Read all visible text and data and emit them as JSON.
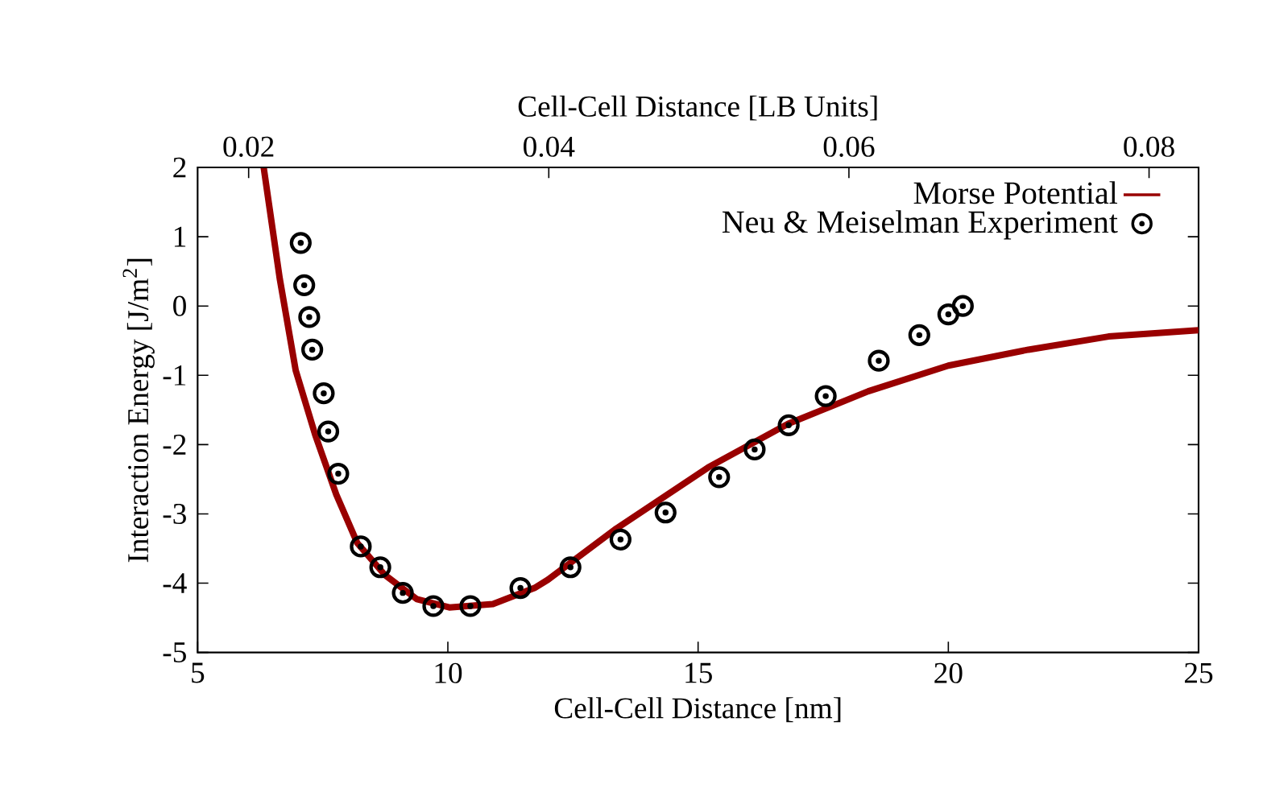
{
  "chart_data": {
    "type": "line",
    "xlabel": "Cell-Cell Distance [nm]",
    "ylabel": "Interaction Energy [J/m$^{2}$]",
    "x2label": "Cell-Cell Distance [LB Units]",
    "xlim": [
      5,
      25
    ],
    "xticks": [
      5,
      10,
      15,
      20,
      25
    ],
    "ylim": [
      -5,
      2
    ],
    "yticks": [
      -5,
      -4,
      -3,
      -2,
      -1,
      0,
      1,
      2
    ],
    "x2lim": [
      0.0166,
      0.0833
    ],
    "x2ticks": [
      0.02,
      0.04,
      0.06,
      0.08
    ],
    "grid": false,
    "legend": "top right",
    "series": [
      {
        "name": "Morse Potential",
        "color": "#990000",
        "line_style": "solid",
        "x": [
          6.32,
          6.64,
          6.96,
          7.35,
          7.77,
          8.19,
          8.74,
          9.38,
          10.03,
          10.9,
          11.73,
          12.0,
          13.37,
          15.2,
          16.8,
          18.4,
          20.0,
          21.6,
          23.2,
          25.0
        ],
        "values": [
          2.0,
          0.4,
          -0.93,
          -1.86,
          -2.72,
          -3.42,
          -3.88,
          -4.23,
          -4.35,
          -4.3,
          -4.07,
          -3.95,
          -3.21,
          -2.33,
          -1.7,
          -1.23,
          -0.86,
          -0.63,
          -0.44,
          -0.35
        ]
      },
      {
        "name": "Neu & Meiselman Experiment",
        "type": "scatter",
        "color": "#000000",
        "marker": "circle",
        "x": [
          7.06,
          7.13,
          7.23,
          7.29,
          7.52,
          7.61,
          7.81,
          8.26,
          8.65,
          9.1,
          9.71,
          10.45,
          11.45,
          12.45,
          13.45,
          14.35,
          15.42,
          16.13,
          16.81,
          17.55,
          18.61,
          19.42,
          20.0,
          20.29
        ],
        "values": [
          0.91,
          0.3,
          -0.16,
          -0.63,
          -1.26,
          -1.81,
          -2.42,
          -3.47,
          -3.77,
          -4.14,
          -4.33,
          -4.33,
          -4.07,
          -3.77,
          -3.37,
          -2.98,
          -2.47,
          -2.07,
          -1.72,
          -1.3,
          -0.79,
          -0.42,
          -0.12,
          0.0
        ]
      }
    ]
  }
}
